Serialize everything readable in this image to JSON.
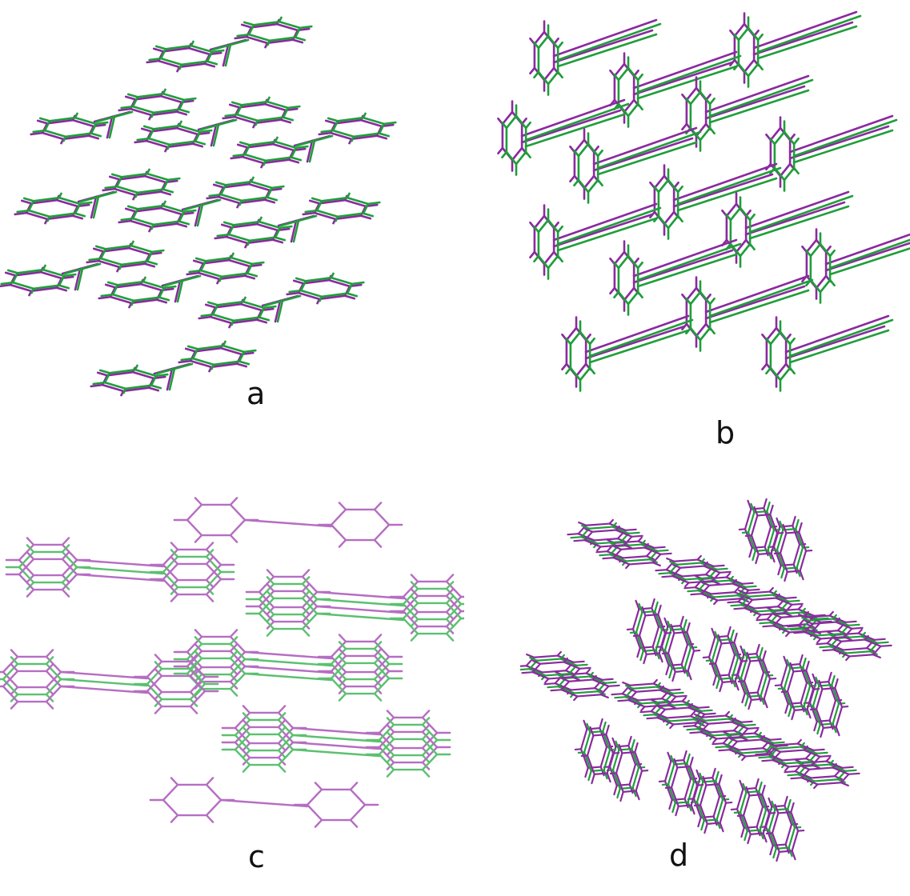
{
  "figure": {
    "panels": [
      {
        "id": "a",
        "label": "a"
      },
      {
        "id": "b",
        "label": "b"
      },
      {
        "id": "c",
        "label": "c"
      },
      {
        "id": "d",
        "label": "d"
      }
    ]
  },
  "colors": {
    "structure_1": "#1f9e3a",
    "structure_2": "#8a2a9e",
    "structure_1_light": "#5cc070",
    "structure_2_light": "#b56ec2"
  }
}
